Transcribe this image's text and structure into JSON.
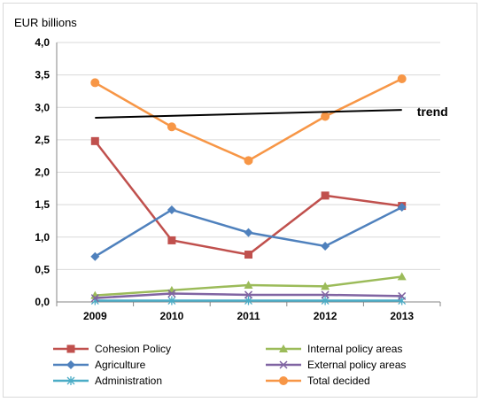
{
  "chart_data": {
    "type": "line",
    "ylabel": "EUR billions",
    "xlabel": "",
    "categories": [
      "2009",
      "2010",
      "2011",
      "2012",
      "2013"
    ],
    "ylim": [
      0,
      4.0
    ],
    "yticks": [
      "0,0",
      "0,5",
      "1,0",
      "1,5",
      "2,0",
      "2,5",
      "3,0",
      "3,5",
      "4,0"
    ],
    "grid": true,
    "legend_position": "bottom",
    "series": [
      {
        "name": "Cohesion Policy",
        "values": [
          2.48,
          0.95,
          0.73,
          1.64,
          1.48
        ],
        "color": "#c0504d",
        "marker": "square"
      },
      {
        "name": "Agriculture",
        "values": [
          0.7,
          1.42,
          1.07,
          0.86,
          1.46
        ],
        "color": "#4f81bd",
        "marker": "diamond"
      },
      {
        "name": "Administration",
        "values": [
          0.02,
          0.02,
          0.02,
          0.02,
          0.02
        ],
        "color": "#4bacc6",
        "marker": "asterisk"
      },
      {
        "name": "Internal policy areas",
        "values": [
          0.1,
          0.18,
          0.26,
          0.24,
          0.39
        ],
        "color": "#9bbb59",
        "marker": "triangle"
      },
      {
        "name": "External policy areas",
        "values": [
          0.06,
          0.13,
          0.11,
          0.11,
          0.09
        ],
        "color": "#8064a2",
        "marker": "x"
      },
      {
        "name": "Total decided",
        "values": [
          3.38,
          2.7,
          2.18,
          2.86,
          3.44
        ],
        "color": "#f79646",
        "marker": "circle"
      }
    ],
    "trend": {
      "label": "trend",
      "start": 2.84,
      "end": 2.96,
      "color": "#000000"
    }
  }
}
